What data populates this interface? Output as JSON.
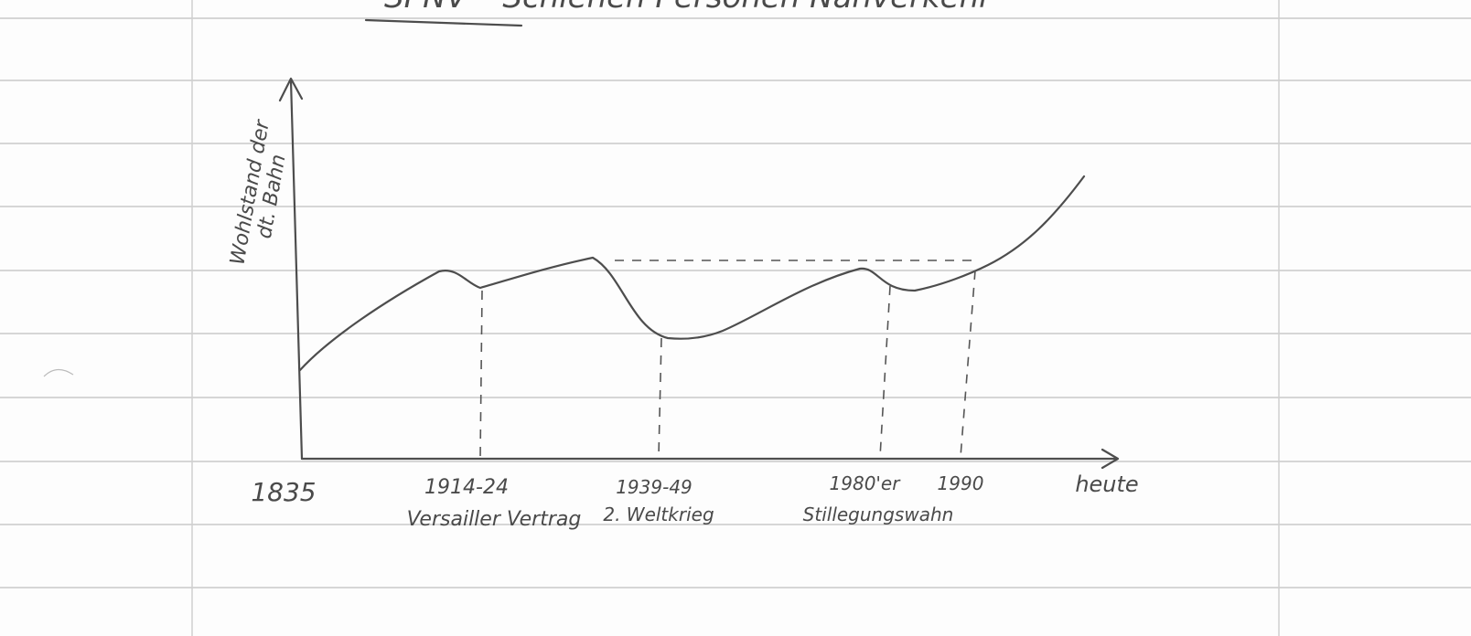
{
  "heading": "SPNV – Schienen Personen Nahverkehr",
  "axis_label": [
    "Wohlstand der",
    "dt. Bahn"
  ],
  "x_labels": [
    "1835",
    "1914-24",
    "1939-49",
    "1980'er",
    "1990",
    "heute"
  ],
  "x_notes": [
    "Versailler Vertrag",
    "2. Weltkrieg",
    "Stillegungswahn"
  ]
}
